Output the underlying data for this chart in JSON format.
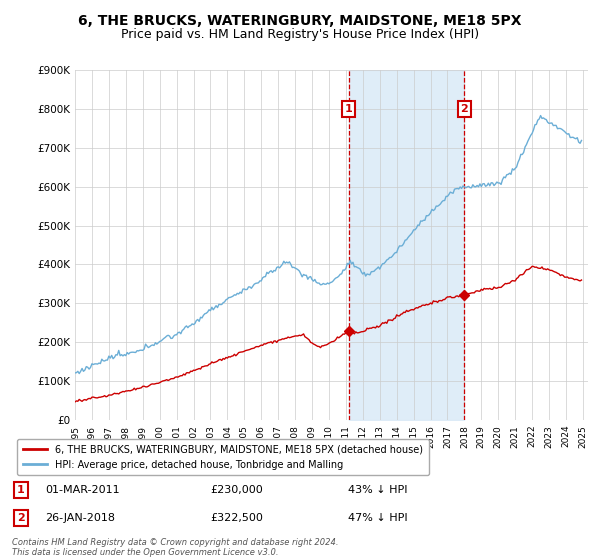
{
  "title": "6, THE BRUCKS, WATERINGBURY, MAIDSTONE, ME18 5PX",
  "subtitle": "Price paid vs. HM Land Registry's House Price Index (HPI)",
  "ylim": [
    0,
    900000
  ],
  "yticks": [
    0,
    100000,
    200000,
    300000,
    400000,
    500000,
    600000,
    700000,
    800000,
    900000
  ],
  "ytick_labels": [
    "£0",
    "£100K",
    "£200K",
    "£300K",
    "£400K",
    "£500K",
    "£600K",
    "£700K",
    "£800K",
    "£900K"
  ],
  "sale1_price": 230000,
  "sale1_date_str": "01-MAR-2011",
  "sale1_pct": "43% ↓ HPI",
  "sale2_price": 322500,
  "sale2_date_str": "26-JAN-2018",
  "sale2_pct": "47% ↓ HPI",
  "hpi_color": "#6baed6",
  "price_color": "#cc0000",
  "shade_color": "#daeaf7",
  "marker_box_color": "#cc0000",
  "legend_line1": "6, THE BRUCKS, WATERINGBURY, MAIDSTONE, ME18 5PX (detached house)",
  "legend_line2": "HPI: Average price, detached house, Tonbridge and Malling",
  "footnote": "Contains HM Land Registry data © Crown copyright and database right 2024.\nThis data is licensed under the Open Government Licence v3.0.",
  "title_fontsize": 10,
  "subtitle_fontsize": 9,
  "background_color": "#ffffff"
}
